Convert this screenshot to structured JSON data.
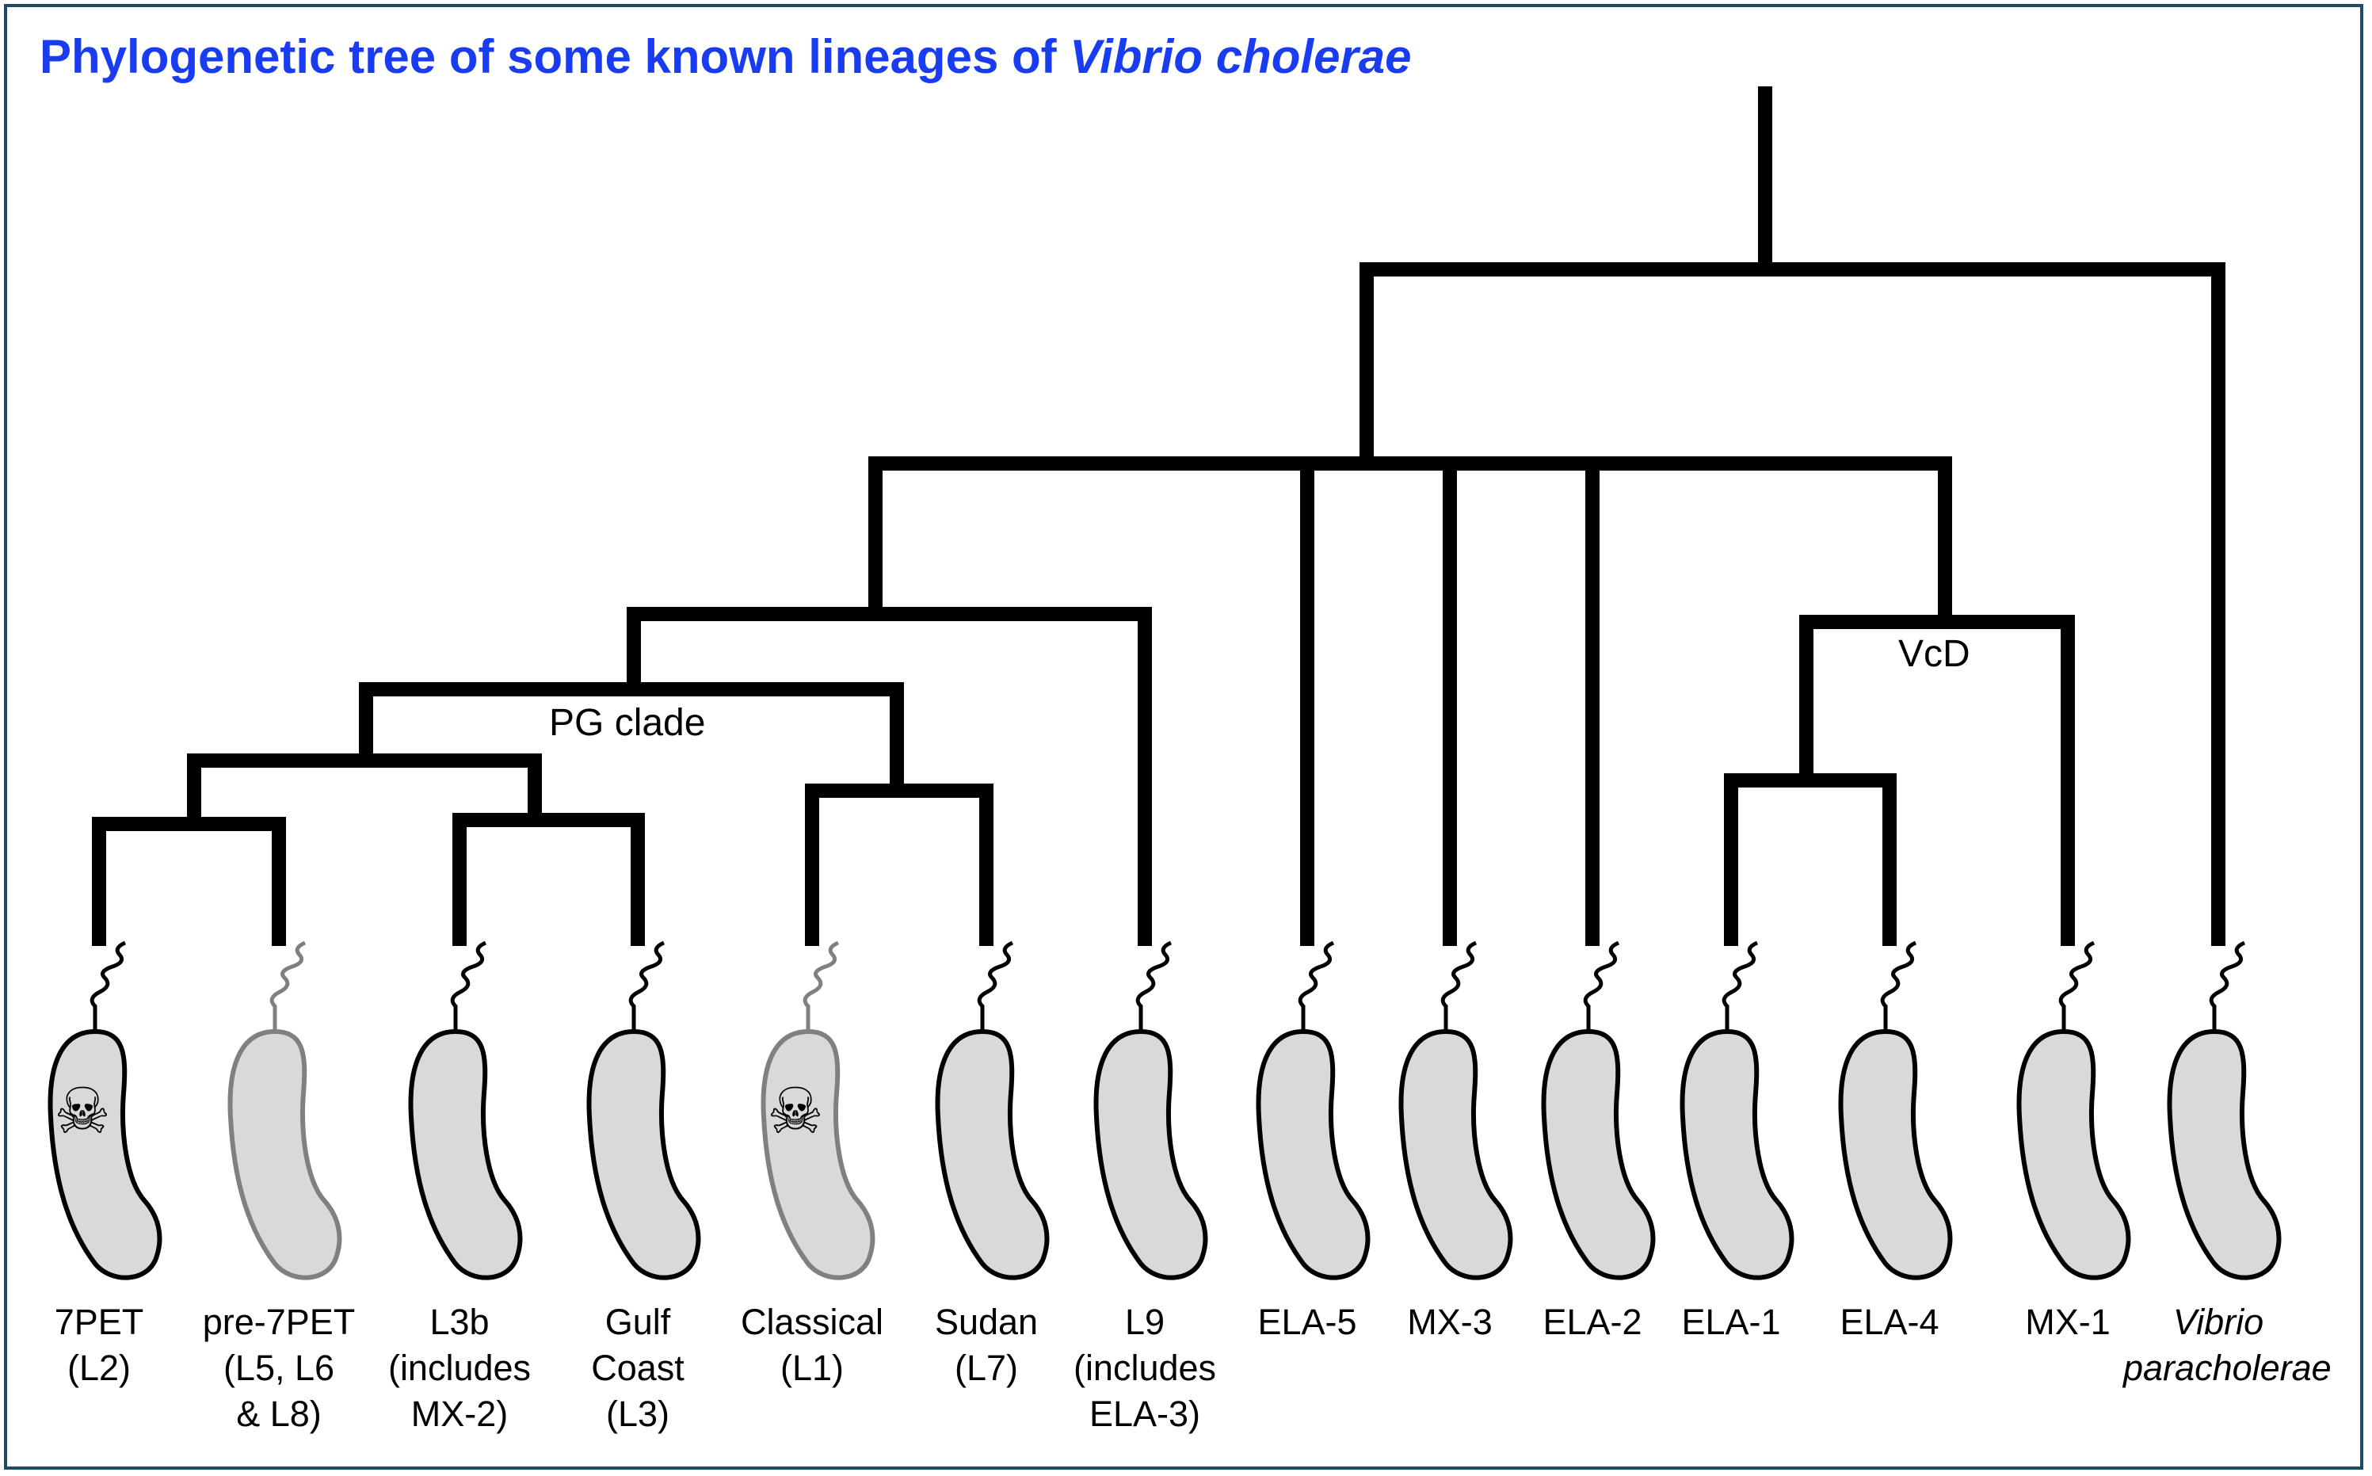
{
  "title": {
    "text": "Phylogenetic tree of some known lineages of ",
    "italic": "Vibrio cholerae",
    "color": "#1a3cf0"
  },
  "colors": {
    "frame": "#1f4a63",
    "branch": "#000000",
    "cell_fill": "#d9d9d9",
    "cell_outline": "#000000",
    "faded_outline": "#808080"
  },
  "clade_labels": {
    "pg": "PG clade",
    "vcd": "VcD"
  },
  "lineages": [
    {
      "id": "7pet",
      "lines": [
        "7PET",
        "(L2)"
      ],
      "pathogenic": true,
      "faded": false,
      "italic": false
    },
    {
      "id": "pre7pet",
      "lines": [
        "pre-7PET",
        "(L5, L6",
        "& L8)"
      ],
      "pathogenic": false,
      "faded": true,
      "italic": false
    },
    {
      "id": "l3b",
      "lines": [
        "L3b",
        "(includes",
        "MX-2)"
      ],
      "pathogenic": false,
      "faded": false,
      "italic": false
    },
    {
      "id": "gulf",
      "lines": [
        "Gulf",
        "Coast",
        "(L3)"
      ],
      "pathogenic": false,
      "faded": false,
      "italic": false
    },
    {
      "id": "classical",
      "lines": [
        "Classical",
        "(L1)"
      ],
      "pathogenic": true,
      "faded": true,
      "italic": false
    },
    {
      "id": "sudan",
      "lines": [
        "Sudan",
        "(L7)"
      ],
      "pathogenic": false,
      "faded": false,
      "italic": false
    },
    {
      "id": "l9",
      "lines": [
        "L9",
        "(includes",
        "ELA-3)"
      ],
      "pathogenic": false,
      "faded": false,
      "italic": false
    },
    {
      "id": "ela5",
      "lines": [
        "ELA-5"
      ],
      "pathogenic": false,
      "faded": false,
      "italic": false
    },
    {
      "id": "mx3",
      "lines": [
        "MX-3"
      ],
      "pathogenic": false,
      "faded": false,
      "italic": false
    },
    {
      "id": "ela2",
      "lines": [
        "ELA-2"
      ],
      "pathogenic": false,
      "faded": false,
      "italic": false
    },
    {
      "id": "ela1",
      "lines": [
        "ELA-1"
      ],
      "pathogenic": false,
      "faded": false,
      "italic": false
    },
    {
      "id": "ela4",
      "lines": [
        "ELA-4"
      ],
      "pathogenic": false,
      "faded": false,
      "italic": false
    },
    {
      "id": "mx1",
      "lines": [
        "MX-1"
      ],
      "pathogenic": false,
      "faded": false,
      "italic": false
    },
    {
      "id": "vpara",
      "lines": [
        "Vibrio",
        "paracholerae"
      ],
      "pathogenic": false,
      "faded": false,
      "italic": true
    }
  ],
  "tree": {
    "children": [
      {
        "children": [
          {
            "children": [
              {
                "label": "pg",
                "children": [
                  {
                    "children": [
                      {
                        "children": [
                          {
                            "leaf": 0
                          },
                          {
                            "leaf": 1
                          }
                        ]
                      },
                      {
                        "children": [
                          {
                            "leaf": 2
                          },
                          {
                            "leaf": 3
                          }
                        ]
                      }
                    ]
                  },
                  {
                    "children": [
                      {
                        "leaf": 4
                      },
                      {
                        "leaf": 5
                      }
                    ]
                  }
                ]
              },
              {
                "leaf": 6
              }
            ]
          },
          {
            "leaf": 7
          },
          {
            "leaf": 8
          },
          {
            "leaf": 9
          },
          {
            "label": "vcd",
            "children": [
              {
                "children": [
                  {
                    "leaf": 10
                  },
                  {
                    "leaf": 11
                  }
                ]
              },
              {
                "leaf": 12
              }
            ]
          }
        ]
      },
      {
        "leaf": 13
      }
    ]
  }
}
